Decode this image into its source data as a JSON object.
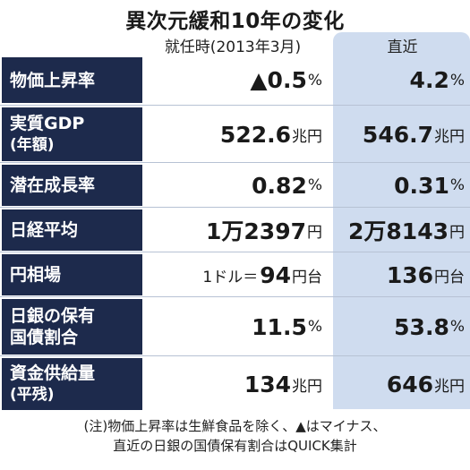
{
  "title": "異次元緩和10年の変化",
  "columns": {
    "then": "就任時(2013年3月)",
    "now": "直近"
  },
  "rows": [
    {
      "label": "物価上昇率",
      "label2": "",
      "then": {
        "pre": "",
        "num": "▲0.5",
        "unit": "%"
      },
      "now": {
        "pre": "",
        "num": "4.2",
        "unit": "%"
      }
    },
    {
      "label": "実質GDP",
      "label2": "(年額)",
      "then": {
        "pre": "",
        "num": "522.6",
        "unit": "兆円"
      },
      "now": {
        "pre": "",
        "num": "546.7",
        "unit": "兆円"
      }
    },
    {
      "label": "潜在成長率",
      "label2": "",
      "then": {
        "pre": "",
        "num": "0.82",
        "unit": "%"
      },
      "now": {
        "pre": "",
        "num": "0.31",
        "unit": "%"
      }
    },
    {
      "label": "日経平均",
      "label2": "",
      "then": {
        "pre": "",
        "num": "1万2397",
        "unit": "円"
      },
      "now": {
        "pre": "",
        "num": "2万8143",
        "unit": "円"
      }
    },
    {
      "label": "円相場",
      "label2": "",
      "then": {
        "pre": "1ドル＝",
        "num": "94",
        "unit": "円台"
      },
      "now": {
        "pre": "",
        "num": "136",
        "unit": "円台"
      }
    },
    {
      "label": "日銀の保有",
      "label2": "国債割合",
      "then": {
        "pre": "",
        "num": "11.5",
        "unit": "%"
      },
      "now": {
        "pre": "",
        "num": "53.8",
        "unit": "%"
      }
    },
    {
      "label": "資金供給量",
      "label2": "(平残)",
      "then": {
        "pre": "",
        "num": "134",
        "unit": "兆円"
      },
      "now": {
        "pre": "",
        "num": "646",
        "unit": "兆円"
      }
    }
  ],
  "note": {
    "line1": "(注)物価上昇率は生鮮食品を除く、▲はマイナス、",
    "line2": "直近の日銀の国債保有割合はQUICK集計"
  }
}
